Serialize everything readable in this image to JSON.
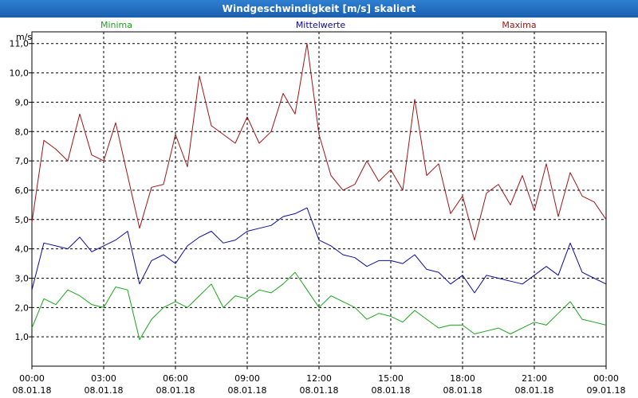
{
  "window": {
    "title": "Windgeschwindigkeit [m/s] skaliert"
  },
  "colors": {
    "minima": "#1aa51a",
    "mittelwerte": "#0a0aa0",
    "maxima": "#a01414",
    "grid": "#000000"
  },
  "chart_data": {
    "type": "line",
    "title": "Windgeschwindigkeit [m/s] skaliert",
    "ylabel": "m/s",
    "xlabel": "",
    "ylim": [
      0.0,
      11.4
    ],
    "xlim": [
      0,
      24
    ],
    "grid": true,
    "yticks": [
      {
        "value": 1.0,
        "label": "1,0"
      },
      {
        "value": 2.0,
        "label": "2,0"
      },
      {
        "value": 3.0,
        "label": "3,0"
      },
      {
        "value": 4.0,
        "label": "4,0"
      },
      {
        "value": 5.0,
        "label": "5,0"
      },
      {
        "value": 6.0,
        "label": "6,0"
      },
      {
        "value": 7.0,
        "label": "7,0"
      },
      {
        "value": 8.0,
        "label": "8,0"
      },
      {
        "value": 9.0,
        "label": "9,0"
      },
      {
        "value": 10.0,
        "label": "10,0"
      },
      {
        "value": 11.0,
        "label": "11,0"
      }
    ],
    "xticks": [
      {
        "hour": 0,
        "time": "00:00",
        "date": "08.01.18"
      },
      {
        "hour": 3,
        "time": "03:00",
        "date": "08.01.18"
      },
      {
        "hour": 6,
        "time": "06:00",
        "date": "08.01.18"
      },
      {
        "hour": 9,
        "time": "09:00",
        "date": "08.01.18"
      },
      {
        "hour": 12,
        "time": "12:00",
        "date": "08.01.18"
      },
      {
        "hour": 15,
        "time": "15:00",
        "date": "08.01.18"
      },
      {
        "hour": 18,
        "time": "18:00",
        "date": "08.01.18"
      },
      {
        "hour": 21,
        "time": "21:00",
        "date": "08.01.18"
      },
      {
        "hour": 24,
        "time": "00:00",
        "date": "09.01.18"
      }
    ],
    "legend": [
      "Minima",
      "Mittelwerte",
      "Maxima"
    ],
    "series": [
      {
        "name": "Maxima",
        "color": "#a01414",
        "x": [
          0,
          0.5,
          1,
          1.5,
          2,
          2.5,
          3,
          3.5,
          4,
          4.5,
          5,
          5.5,
          6,
          6.5,
          7,
          7.5,
          8,
          8.5,
          9,
          9.5,
          10,
          10.5,
          11,
          11.5,
          12,
          12.5,
          13,
          13.5,
          14,
          14.5,
          15,
          15.5,
          16,
          16.5,
          17,
          17.5,
          18,
          18.5,
          19,
          19.5,
          20,
          20.5,
          21,
          21.5,
          22,
          22.5,
          23,
          23.5,
          24
        ],
        "values": [
          4.9,
          7.7,
          7.4,
          7.0,
          8.6,
          7.2,
          7.0,
          8.3,
          6.5,
          4.7,
          6.1,
          6.2,
          7.9,
          6.8,
          9.9,
          8.2,
          7.9,
          7.6,
          8.5,
          7.6,
          8.0,
          9.3,
          8.6,
          11.0,
          7.9,
          6.5,
          6.0,
          6.2,
          7.0,
          6.3,
          6.7,
          6.0,
          9.1,
          6.5,
          6.9,
          5.2,
          5.8,
          4.3,
          5.9,
          6.2,
          5.5,
          6.5,
          5.3,
          6.9,
          5.1,
          6.6,
          5.8,
          5.6,
          5.0
        ]
      },
      {
        "name": "Mittelwerte",
        "color": "#0a0aa0",
        "x": [
          0,
          0.5,
          1,
          1.5,
          2,
          2.5,
          3,
          3.5,
          4,
          4.5,
          5,
          5.5,
          6,
          6.5,
          7,
          7.5,
          8,
          8.5,
          9,
          9.5,
          10,
          10.5,
          11,
          11.5,
          12,
          12.5,
          13,
          13.5,
          14,
          14.5,
          15,
          15.5,
          16,
          16.5,
          17,
          17.5,
          18,
          18.5,
          19,
          19.5,
          20,
          20.5,
          21,
          21.5,
          22,
          22.5,
          23,
          23.5,
          24
        ],
        "values": [
          2.6,
          4.2,
          4.1,
          4.0,
          4.4,
          3.9,
          4.1,
          4.3,
          4.6,
          2.8,
          3.6,
          3.8,
          3.5,
          4.1,
          4.4,
          4.6,
          4.2,
          4.3,
          4.6,
          4.7,
          4.8,
          5.1,
          5.2,
          5.4,
          4.3,
          4.1,
          3.8,
          3.7,
          3.4,
          3.6,
          3.6,
          3.5,
          3.8,
          3.3,
          3.2,
          2.8,
          3.1,
          2.5,
          3.1,
          3.0,
          2.9,
          2.8,
          3.1,
          3.4,
          3.1,
          4.2,
          3.2,
          3.0,
          2.8
        ]
      },
      {
        "name": "Minima",
        "color": "#1aa51a",
        "x": [
          0,
          0.5,
          1,
          1.5,
          2,
          2.5,
          3,
          3.5,
          4,
          4.5,
          5,
          5.5,
          6,
          6.5,
          7,
          7.5,
          8,
          8.5,
          9,
          9.5,
          10,
          10.5,
          11,
          11.5,
          12,
          12.5,
          13,
          13.5,
          14,
          14.5,
          15,
          15.5,
          16,
          16.5,
          17,
          17.5,
          18,
          18.5,
          19,
          19.5,
          20,
          20.5,
          21,
          21.5,
          22,
          22.5,
          23,
          23.5,
          24
        ],
        "values": [
          1.3,
          2.3,
          2.1,
          2.6,
          2.4,
          2.1,
          2.0,
          2.7,
          2.6,
          0.9,
          1.6,
          2.0,
          2.2,
          2.0,
          2.4,
          2.8,
          2.0,
          2.4,
          2.3,
          2.6,
          2.5,
          2.8,
          3.2,
          2.6,
          2.0,
          2.4,
          2.2,
          2.0,
          1.6,
          1.8,
          1.7,
          1.5,
          1.9,
          1.6,
          1.3,
          1.4,
          1.4,
          1.1,
          1.2,
          1.3,
          1.1,
          1.3,
          1.5,
          1.4,
          1.8,
          2.2,
          1.6,
          1.5,
          1.4
        ]
      }
    ]
  }
}
